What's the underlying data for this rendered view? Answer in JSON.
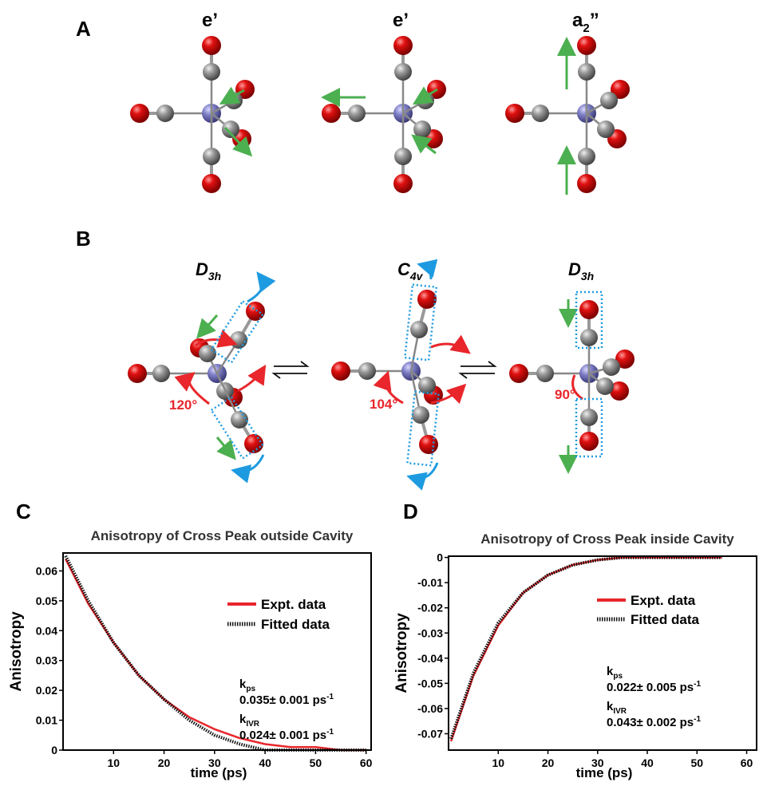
{
  "figure": {
    "panels": {
      "A": "A",
      "B": "B",
      "C": "C",
      "D": "D"
    },
    "modes": [
      {
        "text": "e’"
      },
      {
        "text": "e’"
      },
      {
        "text": "a",
        "sub": "2",
        "tail": "”"
      }
    ],
    "geometries": [
      {
        "text": "D",
        "sub": "3h"
      },
      {
        "text": "C",
        "sub": "4v"
      },
      {
        "text": "D",
        "sub": "3h"
      }
    ],
    "angles": [
      "120°",
      "104°",
      "90°"
    ]
  },
  "chart_data": [
    {
      "type": "line",
      "title": "Anisotropy of Cross Peak outside Cavity",
      "x_label": "time (ps)",
      "y_label": "Anisotropy",
      "x": [
        0.5,
        5,
        10,
        15,
        20,
        25,
        30,
        35,
        40,
        45,
        50,
        55,
        60
      ],
      "series": [
        {
          "name": "Expt. data",
          "color": "#e8262b",
          "line_style": "solid",
          "values": [
            0.064,
            0.049,
            0.036,
            0.025,
            0.017,
            0.011,
            0.007,
            0.004,
            0.002,
            0.001,
            0.001,
            0,
            0
          ]
        },
        {
          "name": "Fitted data",
          "color": "#111111",
          "line_style": "dotted",
          "values": [
            0.065,
            0.05,
            0.036,
            0.025,
            0.017,
            0.01,
            0.005,
            0.002,
            0,
            0,
            0,
            0,
            0
          ]
        }
      ],
      "xlim": [
        0,
        61
      ],
      "xticks": [
        10,
        20,
        30,
        40,
        50,
        60
      ],
      "ylim": [
        0,
        0.066
      ],
      "yticks": [
        0,
        0.01,
        0.02,
        0.03,
        0.04,
        0.05,
        0.06
      ],
      "rates": [
        {
          "symbol": "k",
          "subscript": "ps",
          "value": "0.035± 0.001 ps",
          "superscript": "-1"
        },
        {
          "symbol": "k",
          "subscript": "IVR",
          "value": "0.024± 0.001 ps",
          "superscript": "-1"
        }
      ]
    },
    {
      "type": "line",
      "title": "Anisotropy of Cross Peak inside Cavity",
      "x_label": "time (ps)",
      "y_label": "Anisotropy",
      "x": [
        0.5,
        5,
        10,
        15,
        20,
        25,
        30,
        35,
        40,
        45,
        50,
        55
      ],
      "series": [
        {
          "name": "Expt. data",
          "color": "#e8262b",
          "line_style": "solid",
          "values": [
            -0.073,
            -0.047,
            -0.027,
            -0.014,
            -0.007,
            -0.003,
            -0.001,
            0,
            0,
            0,
            0,
            0
          ]
        },
        {
          "name": "Fitted data",
          "color": "#111111",
          "line_style": "dotted",
          "values": [
            -0.072,
            -0.046,
            -0.026,
            -0.014,
            -0.007,
            -0.003,
            -0.001,
            0,
            0,
            0,
            0,
            0
          ]
        }
      ],
      "xlim": [
        0,
        62
      ],
      "xticks": [
        10,
        20,
        30,
        40,
        50,
        60
      ],
      "ylim": [
        -0.0765,
        0.0005
      ],
      "yticks": [
        0,
        -0.01,
        -0.02,
        -0.03,
        -0.04,
        -0.05,
        -0.06,
        -0.07
      ],
      "rates": [
        {
          "symbol": "k",
          "subscript": "ps",
          "value": "0.022± 0.005 ps",
          "superscript": "-1"
        },
        {
          "symbol": "k",
          "subscript": "IVR",
          "value": "0.043± 0.002 ps",
          "superscript": "-1"
        }
      ]
    }
  ]
}
